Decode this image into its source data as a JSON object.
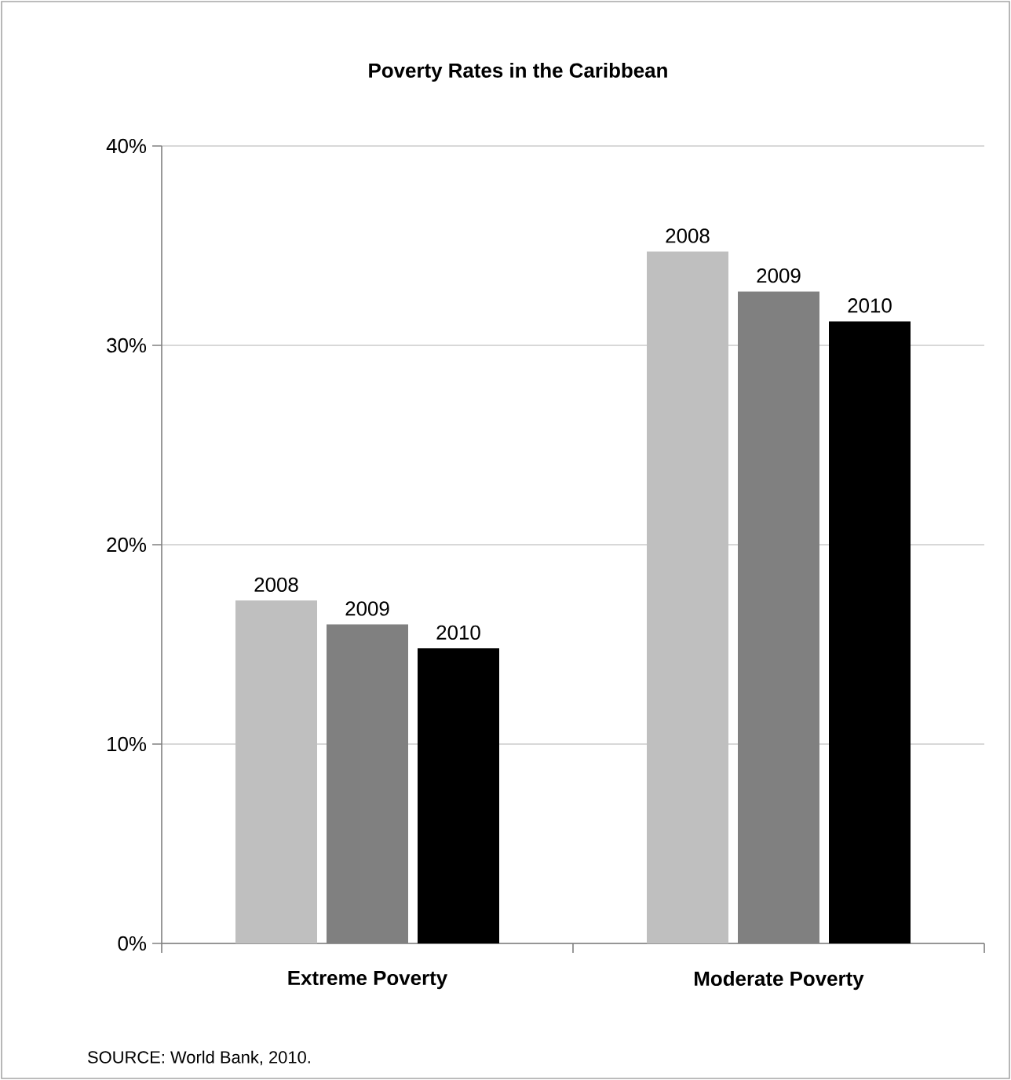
{
  "chart_data": {
    "type": "bar",
    "title": "Poverty Rates in the Caribbean",
    "categories": [
      "Extreme Poverty",
      "Moderate Poverty"
    ],
    "series": [
      {
        "name": "2008",
        "color": "#bfbfbf",
        "values": [
          17.2,
          34.7
        ]
      },
      {
        "name": "2009",
        "color": "#808080",
        "values": [
          16.0,
          32.7
        ]
      },
      {
        "name": "2010",
        "color": "#000000",
        "values": [
          14.8,
          31.2
        ]
      }
    ],
    "ylim": [
      0,
      40
    ],
    "yticks": [
      {
        "value": 0,
        "label": "0%"
      },
      {
        "value": 10,
        "label": "10%"
      },
      {
        "value": 20,
        "label": "20%"
      },
      {
        "value": 30,
        "label": "30%"
      },
      {
        "value": 40,
        "label": "40%"
      }
    ],
    "grid": "y",
    "annotations": [
      "SOURCE: World Bank, 2010."
    ]
  }
}
